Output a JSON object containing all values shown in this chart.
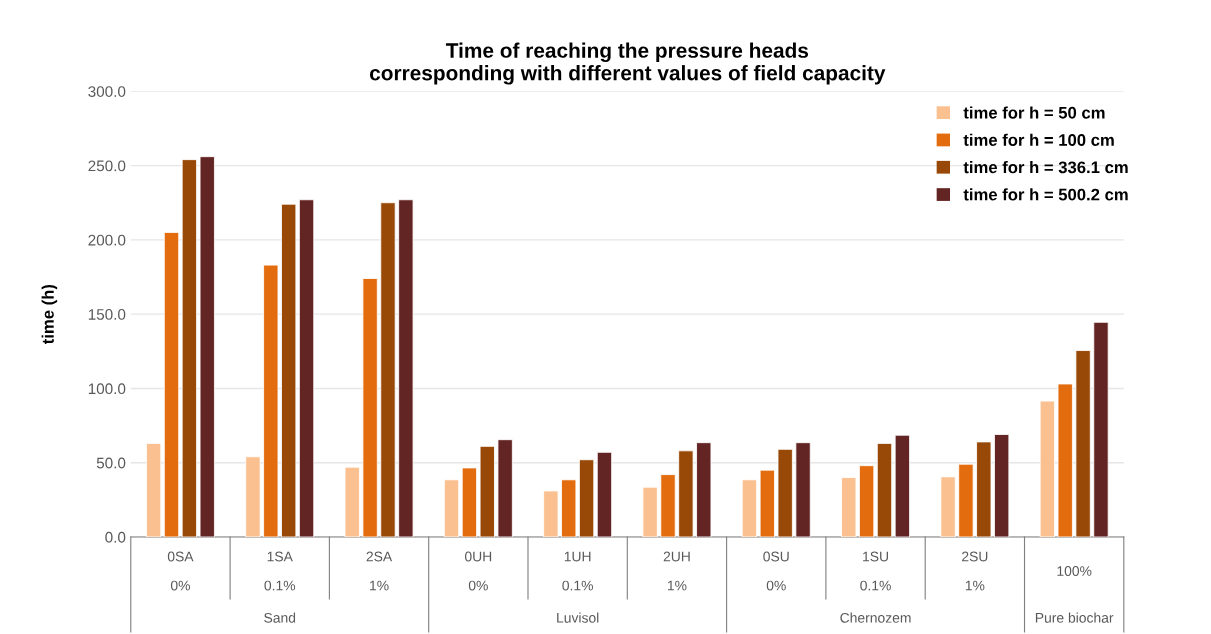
{
  "chart_data": {
    "type": "bar",
    "title": "Time of reaching the pressure heads\ncorresponding with different values of field capacity",
    "ylabel": "time (h)",
    "categories": [
      "0SA\n0%",
      "1SA\n0.1%",
      "2SA\n1%",
      "0UH\n0%",
      "1UH\n0.1%",
      "2UH\n1%",
      "0SU\n0%",
      "1SU\n0.1%",
      "2SU\n1%",
      "100%"
    ],
    "series": [
      {
        "name": "time for h = 50 cm",
        "color": "#fbc08f",
        "values": [
          63,
          54,
          47,
          38.5,
          31,
          33.5,
          38.5,
          40,
          40.5,
          91.5
        ]
      },
      {
        "name": "time for h = 100 cm",
        "color": "#e36c0e",
        "values": [
          205,
          183,
          174,
          46.5,
          38.5,
          42,
          45,
          48,
          49,
          103
        ]
      },
      {
        "name": "time for h = 336.1 cm",
        "color": "#984807",
        "values": [
          254,
          224,
          225,
          61,
          52,
          58,
          59,
          63,
          64,
          125.5
        ]
      },
      {
        "name": "time for h = 500.2 cm",
        "color": "#632523",
        "values": [
          256,
          227,
          227,
          65.5,
          57,
          63.5,
          63.5,
          68.5,
          69,
          144.5
        ]
      }
    ],
    "ylim": [
      0,
      300
    ],
    "yticks": [
      {
        "value": 0,
        "label": "0.0"
      },
      {
        "value": 50,
        "label": "50.0"
      },
      {
        "value": 100,
        "label": "100.0"
      },
      {
        "value": 150,
        "label": "150.0"
      },
      {
        "value": 200,
        "label": "200.0"
      },
      {
        "value": 250,
        "label": "250.0"
      },
      {
        "value": 300,
        "label": "300.0"
      }
    ],
    "grid": "y",
    "legend": "top right",
    "annotations": [
      "Sand",
      "Luvisol",
      "Chernozem",
      "Pure biochar"
    ]
  }
}
